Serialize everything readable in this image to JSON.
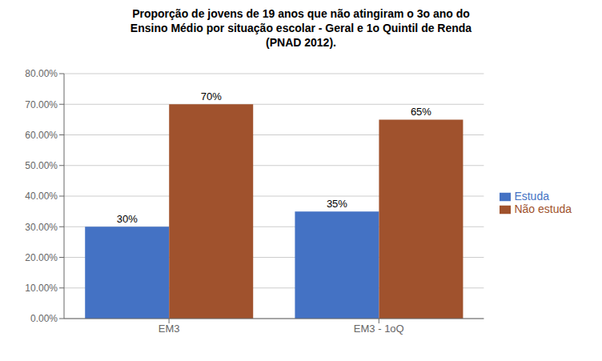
{
  "chart_data": {
    "type": "bar",
    "title": "Proporção de jovens de 19 anos que não atingiram o 3o ano do\nEnsino Médio por situação escolar - Geral e 1o Quintil de Renda\n(PNAD 2012).",
    "categories": [
      "EM3",
      "EM3 - 1oQ"
    ],
    "series": [
      {
        "name": "Estuda",
        "color": "#4472C4",
        "values": [
          0.3,
          0.35
        ],
        "value_labels": [
          "30%",
          "35%"
        ]
      },
      {
        "name": "Não estuda",
        "color": "#A0522D",
        "values": [
          0.7,
          0.65
        ],
        "value_labels": [
          "70%",
          "65%"
        ]
      }
    ],
    "ylim": [
      0,
      0.8
    ],
    "yticks": [
      {
        "value": 0.0,
        "label": "0.00%"
      },
      {
        "value": 0.1,
        "label": "10.00%"
      },
      {
        "value": 0.2,
        "label": "20.00%"
      },
      {
        "value": 0.3,
        "label": "30.00%"
      },
      {
        "value": 0.4,
        "label": "40.00%"
      },
      {
        "value": 0.5,
        "label": "50.00%"
      },
      {
        "value": 0.6,
        "label": "60.00%"
      },
      {
        "value": 0.7,
        "label": "70.00%"
      },
      {
        "value": 0.8,
        "label": "80.00%"
      }
    ],
    "grid": true,
    "legend": "right",
    "data_labels": true
  }
}
